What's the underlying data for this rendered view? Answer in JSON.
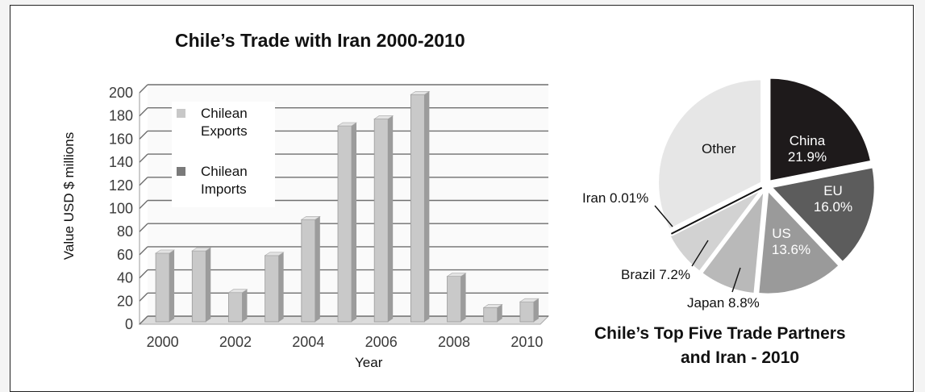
{
  "chart_data": [
    {
      "type": "bar",
      "title": "Chile’s Trade with Iran 2000-2010",
      "xlabel": "Year",
      "ylabel": "Value USD $ millions",
      "ylim": [
        0,
        200
      ],
      "yticks": [
        0,
        20,
        40,
        60,
        80,
        100,
        120,
        140,
        160,
        180,
        200
      ],
      "categories": [
        "2000",
        "2001",
        "2002",
        "2003",
        "2004",
        "2005",
        "2006",
        "2007",
        "2008",
        "2009",
        "2010"
      ],
      "xtick_labels": [
        "2000",
        "2002",
        "2004",
        "2006",
        "2008",
        "2010"
      ],
      "legend": {
        "position": "top-left",
        "entries": [
          {
            "label_line1": "Chilean",
            "label_line2": "Exports",
            "color": "#c8c8c8"
          },
          {
            "label_line1": "Chilean",
            "label_line2": "Imports",
            "color": "#7a7a7a"
          }
        ]
      },
      "series": [
        {
          "name": "Chilean Exports",
          "values": [
            60,
            62,
            26,
            58,
            89,
            170,
            176,
            197,
            40,
            13,
            18
          ]
        },
        {
          "name": "Chilean Imports",
          "values": [
            0,
            0,
            0,
            0,
            0,
            0,
            0,
            0,
            0,
            0,
            0
          ]
        }
      ],
      "grid": true
    },
    {
      "type": "pie",
      "title_line1": "Chile’s Top Five Trade Partners",
      "title_line2": "and Iran - 2010",
      "slices": [
        {
          "label": "China",
          "value_label": "21.9%",
          "value": 21.9,
          "color": "#1e1a1b",
          "text_color": "#ffffff"
        },
        {
          "label": "EU",
          "value_label": "16.0%",
          "value": 16.0,
          "color": "#5c5c5c",
          "text_color": "#ffffff"
        },
        {
          "label": "US",
          "value_label": "13.6%",
          "value": 13.6,
          "color": "#9a9a9a",
          "text_color": "#ffffff"
        },
        {
          "label": "Japan 8.8%",
          "value": 8.8,
          "color": "#b9b9b9"
        },
        {
          "label": "Brazil 7.2%",
          "value": 7.2,
          "color": "#d2d2d2"
        },
        {
          "label": "Iran 0.01%",
          "value": 0.01,
          "color": "#111111"
        },
        {
          "label": "Other",
          "value": 32.49,
          "color": "#e6e6e6"
        }
      ]
    }
  ]
}
